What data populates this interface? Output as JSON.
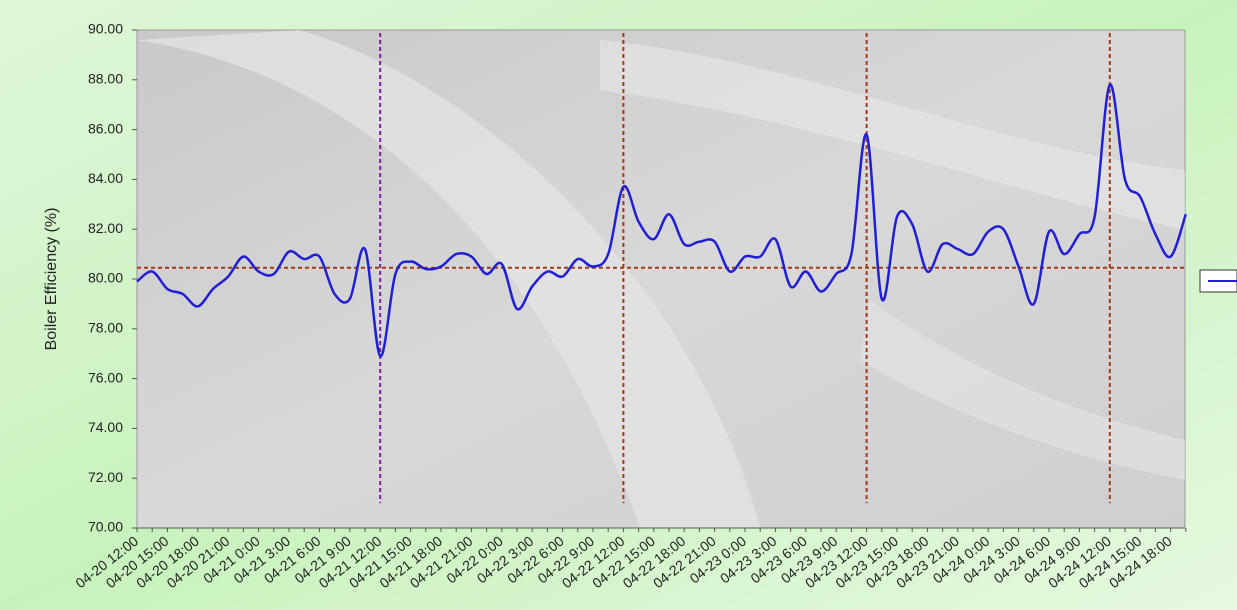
{
  "chart_data": {
    "type": "line",
    "y_label": "Boiler Efficiency (%)",
    "categories": [
      "04-20 12:00",
      null,
      "04-20 15:00",
      null,
      "04-20 18:00",
      null,
      "04-20 21:00",
      null,
      "04-21 0:00",
      null,
      "04-21 3:00",
      null,
      "04-21 6:00",
      null,
      "04-21 9:00",
      null,
      "04-21 12:00",
      null,
      "04-21 15:00",
      null,
      "04-21 18:00",
      null,
      "04-21 21:00",
      null,
      "04-22 0:00",
      null,
      "04-22 3:00",
      null,
      "04-22 6:00",
      null,
      "04-22 9:00",
      null,
      "04-22 12:00",
      null,
      "04-22 15:00",
      null,
      "04-22 18:00",
      null,
      "04-22 21:00",
      null,
      "04-23 0:00",
      null,
      "04-23 3:00",
      null,
      "04-23 6:00",
      null,
      "04-23 9:00",
      null,
      "04-23 12:00",
      null,
      "04-23 15:00",
      null,
      "04-23 18:00",
      null,
      "04-23 21:00",
      null,
      "04-24 0:00",
      null,
      "04-24 3:00",
      null,
      "04-24 6:00",
      null,
      "04-24 9:00",
      null,
      "04-24 12:00",
      null,
      "04-24 15:00",
      null,
      "04-24 18:00",
      null
    ],
    "series": [
      {
        "color": "#1f1fd6",
        "values": [
          79.9,
          80.3,
          79.6,
          79.4,
          78.9,
          79.6,
          80.1,
          80.9,
          80.3,
          80.2,
          81.1,
          80.8,
          80.9,
          79.4,
          79.2,
          81.2,
          76.9,
          80.2,
          80.7,
          80.4,
          80.5,
          81.0,
          80.9,
          80.2,
          80.6,
          78.8,
          79.7,
          80.3,
          80.1,
          80.8,
          80.5,
          81.0,
          83.7,
          82.3,
          81.6,
          82.6,
          81.4,
          81.5,
          81.5,
          80.3,
          80.9,
          80.9,
          81.6,
          79.7,
          80.3,
          79.5,
          80.2,
          81.0,
          85.8,
          79.2,
          82.5,
          82.2,
          80.3,
          81.4,
          81.2,
          81.0,
          81.9,
          82.0,
          80.5,
          79.0,
          81.9,
          81.0,
          81.8,
          82.5,
          87.8,
          84.0,
          83.3,
          81.8,
          80.9,
          82.6
        ]
      }
    ],
    "ylim": [
      70,
      90
    ],
    "yticks": [
      {
        "value": 70,
        "label": "70.00"
      },
      {
        "value": 72,
        "label": "72.00"
      },
      {
        "value": 74,
        "label": "74.00"
      },
      {
        "value": 76,
        "label": "76.00"
      },
      {
        "value": 78,
        "label": "78.00"
      },
      {
        "value": 80,
        "label": "80.00"
      },
      {
        "value": 82,
        "label": "82.00"
      },
      {
        "value": 84,
        "label": "84.00"
      },
      {
        "value": 86,
        "label": "86.00"
      },
      {
        "value": 88,
        "label": "88.00"
      },
      {
        "value": 90,
        "label": "90.00"
      }
    ],
    "reference_y": 80.45,
    "reference_x_indices": [
      16,
      32,
      48,
      64
    ],
    "reference_x_colors": [
      "#7a1fa0",
      "#a33a12",
      "#a33a12",
      "#a33a12"
    ]
  }
}
